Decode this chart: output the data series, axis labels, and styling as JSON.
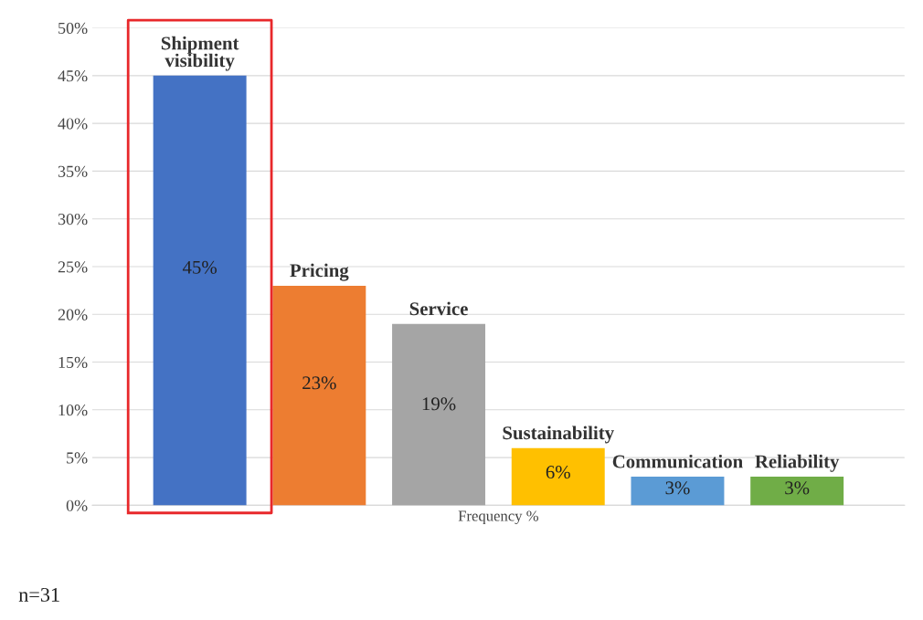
{
  "chart_data": {
    "type": "bar",
    "categories": [
      "Shipment visibility",
      "Pricing",
      "Service",
      "Sustainability",
      "Communication",
      "Reliability"
    ],
    "values": [
      45,
      23,
      19,
      6,
      3,
      3
    ],
    "colors": [
      "#4472c4",
      "#ed7d31",
      "#a5a5a5",
      "#ffc000",
      "#5b9bd5",
      "#70ad47"
    ],
    "value_labels": [
      "45%",
      "23%",
      "19%",
      "6%",
      "3%",
      "3%"
    ],
    "xlabel": "Frequency %",
    "ylim": [
      0,
      50
    ],
    "yticks": [
      {
        "value": 0,
        "label": "0%"
      },
      {
        "value": 5,
        "label": "5%"
      },
      {
        "value": 10,
        "label": "10%"
      },
      {
        "value": 15,
        "label": "15%"
      },
      {
        "value": 20,
        "label": "20%"
      },
      {
        "value": 25,
        "label": "25%"
      },
      {
        "value": 30,
        "label": "30%"
      },
      {
        "value": 35,
        "label": "35%"
      },
      {
        "value": 40,
        "label": "40%"
      },
      {
        "value": 45,
        "label": "45%"
      },
      {
        "value": 50,
        "label": "50%"
      }
    ],
    "grid": "y",
    "tick_labels": "y",
    "annotations": [
      "n=31"
    ]
  }
}
